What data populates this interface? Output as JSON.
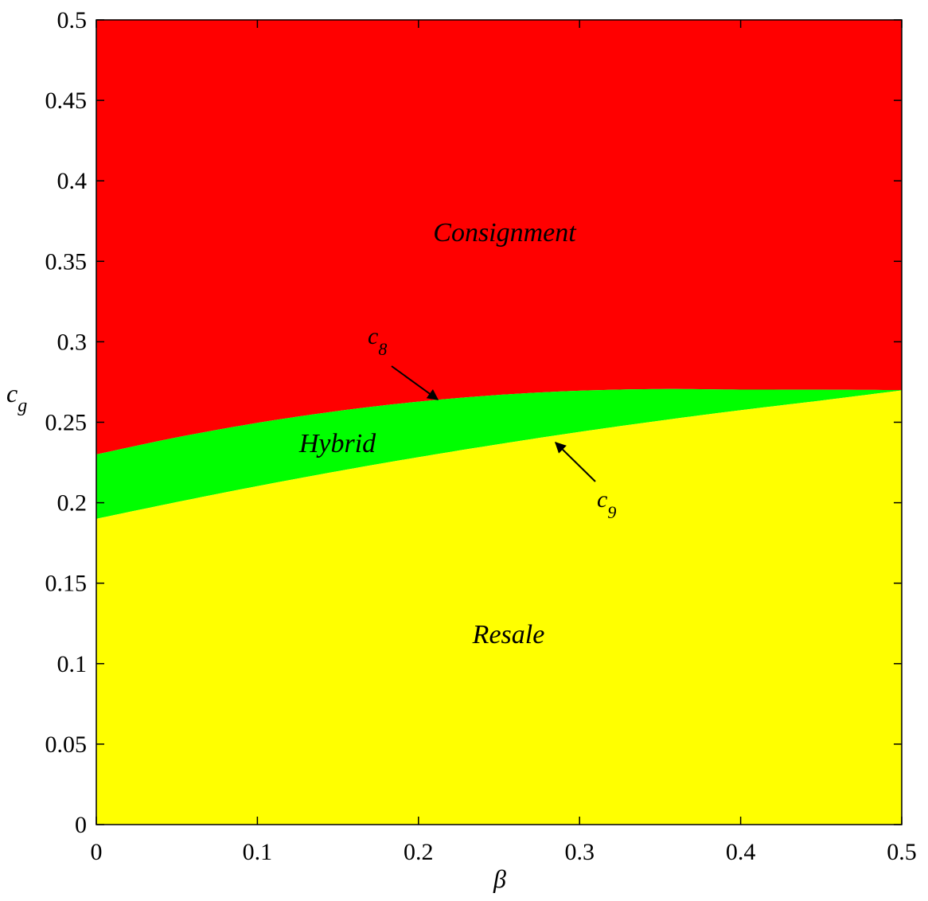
{
  "chart_data": {
    "type": "area",
    "title": "",
    "xlabel": "β",
    "ylabel_main": "c",
    "ylabel_sub": "g",
    "xlim": [
      0,
      0.5
    ],
    "ylim": [
      0,
      0.5
    ],
    "grid": false,
    "xticks": [
      0,
      0.1,
      0.2,
      0.3,
      0.4,
      0.5
    ],
    "xtick_labels": [
      "0",
      "0.1",
      "0.2",
      "0.3",
      "0.4",
      "0.5"
    ],
    "yticks": [
      0,
      0.05,
      0.1,
      0.15,
      0.2,
      0.25,
      0.3,
      0.35,
      0.4,
      0.45,
      0.5
    ],
    "ytick_labels": [
      "0",
      "0.05",
      "0.1",
      "0.15",
      "0.2",
      "0.25",
      "0.3",
      "0.35",
      "0.4",
      "0.45",
      "0.5"
    ],
    "colors": {
      "consignment": "#ff0000",
      "hybrid": "#00ff00",
      "resale": "#ffff00",
      "frame": "#000000"
    },
    "curves": {
      "c8": {
        "x": [
          0,
          0.05,
          0.1,
          0.15,
          0.2,
          0.25,
          0.3,
          0.35,
          0.4,
          0.45,
          0.5
        ],
        "y": [
          0.23,
          0.2406,
          0.2496,
          0.257,
          0.2628,
          0.267,
          0.2696,
          0.2706,
          0.2703,
          0.2702,
          0.27
        ]
      },
      "c9": {
        "x": [
          0,
          0.05,
          0.1,
          0.15,
          0.2,
          0.25,
          0.3,
          0.35,
          0.4,
          0.45,
          0.5
        ],
        "y": [
          0.19,
          0.2004,
          0.2103,
          0.2196,
          0.2283,
          0.2364,
          0.244,
          0.251,
          0.2575,
          0.2635,
          0.2698
        ]
      }
    },
    "regions": [
      {
        "id": "consignment",
        "label": "Consignment"
      },
      {
        "id": "hybrid",
        "label": "Hybrid"
      },
      {
        "id": "resale",
        "label": "Resale"
      }
    ],
    "annotations": [
      {
        "id": "c8",
        "main": "c",
        "sub": "8"
      },
      {
        "id": "c9",
        "main": "c",
        "sub": "9"
      }
    ]
  }
}
